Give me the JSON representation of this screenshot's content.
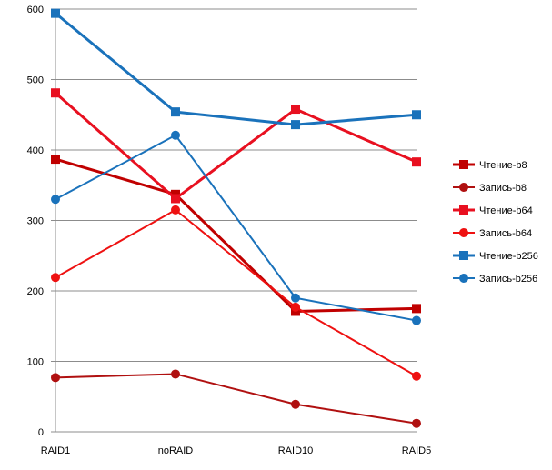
{
  "chart_data": {
    "type": "line",
    "categories": [
      "RAID1",
      "noRAID",
      "RAID10",
      "RAID5"
    ],
    "ylim": [
      0,
      600
    ],
    "yticks": [
      0,
      100,
      200,
      300,
      400,
      500,
      600
    ],
    "grid": true,
    "legend_position": "right",
    "series": [
      {
        "name": "Чтение-b8",
        "color": "#c00000",
        "marker": "square",
        "stroke": 3,
        "values": [
          387,
          337,
          171,
          175
        ]
      },
      {
        "name": "Запись-b8",
        "color": "#b01010",
        "marker": "circle",
        "stroke": 2,
        "values": [
          77,
          82,
          39,
          12
        ]
      },
      {
        "name": "Чтение-b64",
        "color": "#e81020",
        "marker": "square",
        "stroke": 3,
        "values": [
          481,
          331,
          458,
          383
        ]
      },
      {
        "name": "Запись-b64",
        "color": "#ee1111",
        "marker": "circle",
        "stroke": 2,
        "values": [
          219,
          315,
          177,
          79
        ]
      },
      {
        "name": "Чтение-b256",
        "color": "#1a72bb",
        "marker": "square",
        "stroke": 3,
        "values": [
          594,
          454,
          436,
          450
        ]
      },
      {
        "name": "Запись-b256",
        "color": "#1a72bb",
        "marker": "circle",
        "stroke": 2,
        "values": [
          330,
          421,
          190,
          158
        ]
      }
    ]
  }
}
